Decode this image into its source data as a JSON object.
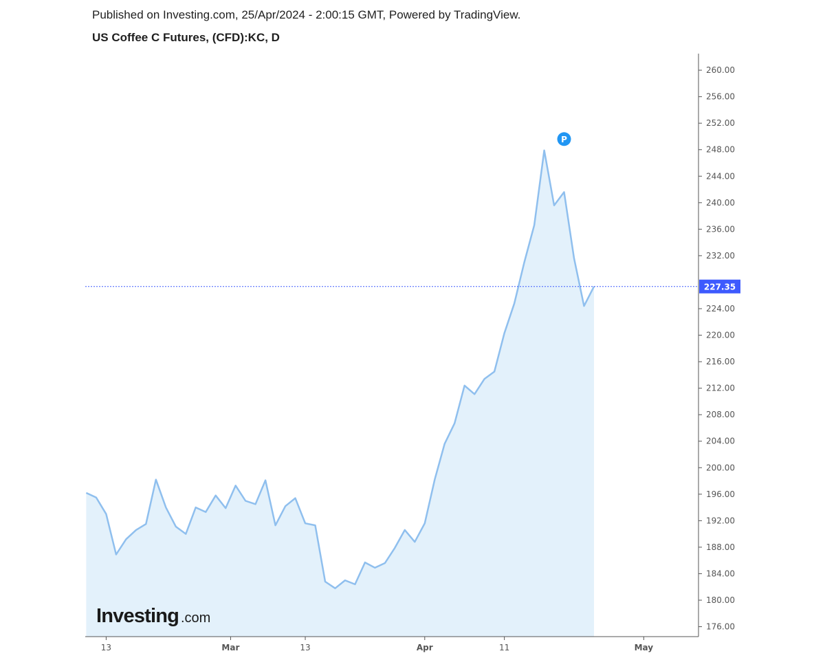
{
  "header": {
    "published": "Published on Investing.com, 25/Apr/2024 - 2:00:15 GMT, Powered by TradingView.",
    "symbol": "US Coffee C Futures, (CFD):KC, D"
  },
  "colors": {
    "line": "#8fbfee",
    "area": "#e3f1fb",
    "price_line": "#3d5afe",
    "price_badge": "#3d5afe",
    "marker": "#2196f3",
    "axis": "#555555"
  },
  "logo": {
    "main": "Investing",
    "suffix": ".com"
  },
  "marker": {
    "label": "P",
    "icon": "p-marker-icon"
  },
  "chart_data": {
    "type": "area",
    "ylim": [
      174.5,
      262.5
    ],
    "y_ticks": [
      "260.00",
      "256.00",
      "252.00",
      "248.00",
      "244.00",
      "240.00",
      "236.00",
      "232.00",
      "224.00",
      "220.00",
      "216.00",
      "212.00",
      "208.00",
      "204.00",
      "200.00",
      "196.00",
      "192.00",
      "188.00",
      "184.00",
      "180.00",
      "176.00"
    ],
    "x_ticks": [
      {
        "label": "13",
        "index": 2,
        "bold": false
      },
      {
        "label": "Mar",
        "index": 14.5,
        "bold": true
      },
      {
        "label": "13",
        "index": 22,
        "bold": false
      },
      {
        "label": "Apr",
        "index": 34,
        "bold": true
      },
      {
        "label": "11",
        "index": 42,
        "bold": false
      },
      {
        "label": "May",
        "index": 56,
        "bold": true
      }
    ],
    "last_price": 227.35,
    "last_price_label": "227.35",
    "grid": false,
    "legend": "none",
    "x_index_range": [
      -0.1,
      61.5
    ],
    "values": [
      196.2,
      195.5,
      193.0,
      186.9,
      189.2,
      190.6,
      191.5,
      198.2,
      194.0,
      191.1,
      190.0,
      194.0,
      193.3,
      195.8,
      193.9,
      197.3,
      195.0,
      194.5,
      198.1,
      191.3,
      194.2,
      195.4,
      191.6,
      191.3,
      182.8,
      181.8,
      183.0,
      182.4,
      185.7,
      184.9,
      185.6,
      187.9,
      190.6,
      188.8,
      191.6,
      198.2,
      203.6,
      206.7,
      212.4,
      211.1,
      213.4,
      214.5,
      220.3,
      224.8,
      231.0,
      236.6,
      247.9,
      239.6,
      241.6,
      231.6,
      224.4,
      227.35
    ]
  }
}
